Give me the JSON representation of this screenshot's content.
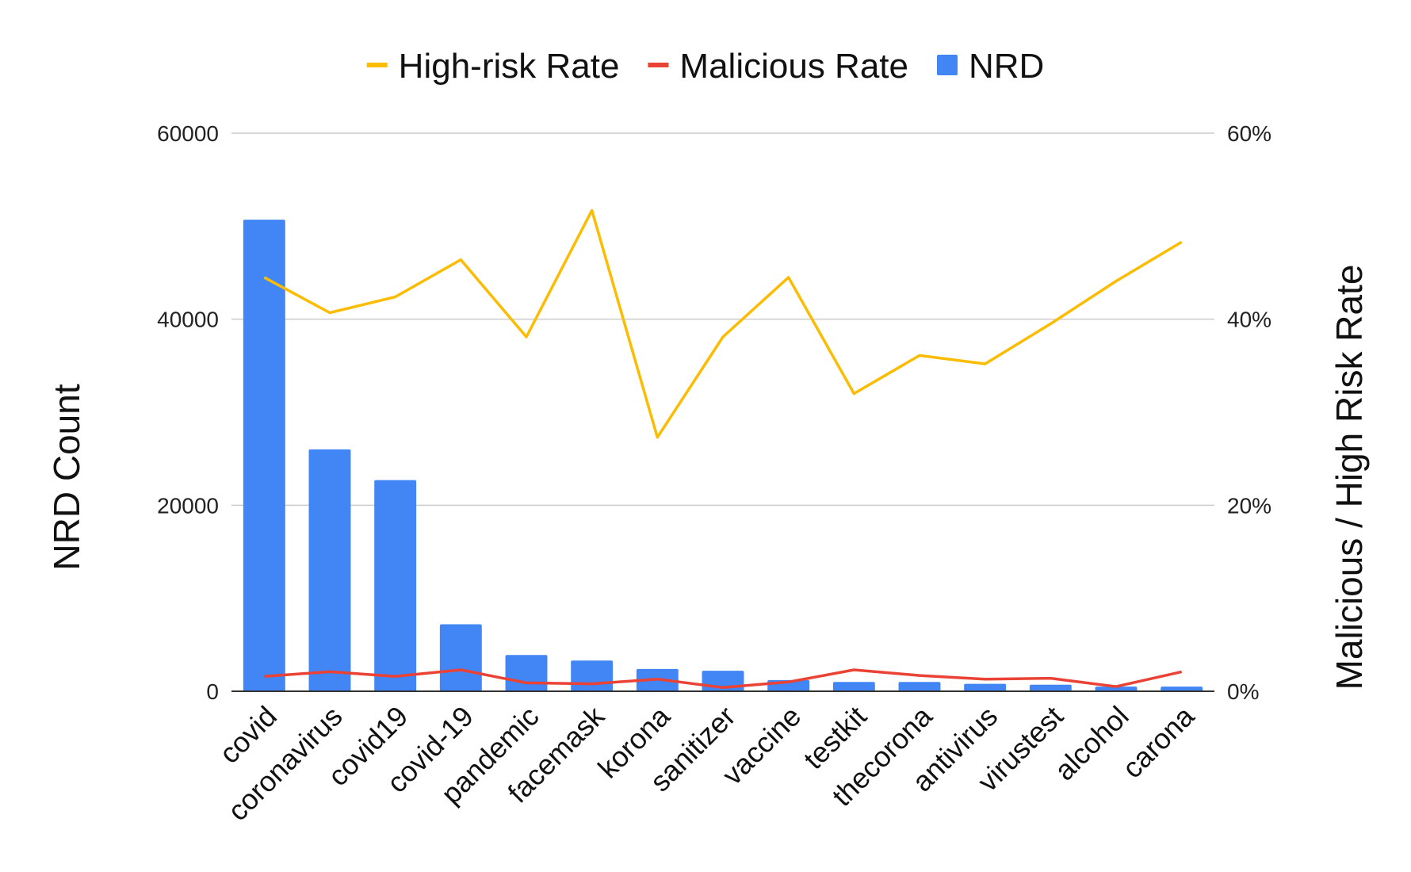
{
  "chart_data": {
    "type": "bar",
    "categories": [
      "covid",
      "coronavirus",
      "covid19",
      "covid-19",
      "pandemic",
      "facemask",
      "korona",
      "sanitizer",
      "vaccine",
      "testkit",
      "thecorona",
      "antivirus",
      "virustest",
      "alcohol",
      "carona"
    ],
    "series": [
      {
        "name": "NRD",
        "type": "bar",
        "axis": "left",
        "color": "#4285F4",
        "values": [
          50700,
          26000,
          22700,
          7200,
          3900,
          3300,
          2400,
          2200,
          1200,
          1000,
          1000,
          800,
          700,
          500,
          500
        ]
      },
      {
        "name": "High-risk Rate",
        "type": "line",
        "axis": "right",
        "color": "#FBBC04",
        "values": [
          0.445,
          0.407,
          0.424,
          0.464,
          0.381,
          0.517,
          0.273,
          0.381,
          0.445,
          0.32,
          0.361,
          0.352,
          0.395,
          0.441,
          0.483
        ]
      },
      {
        "name": "Malicious Rate",
        "type": "line",
        "axis": "right",
        "color": "#EA4335",
        "values": [
          0.016,
          0.021,
          0.016,
          0.023,
          0.009,
          0.008,
          0.013,
          0.004,
          0.01,
          0.023,
          0.017,
          0.013,
          0.014,
          0.005,
          0.021
        ]
      }
    ],
    "ylabel": "NRD Count",
    "y2label": "Malicious / High Risk Rate",
    "ylim": [
      0,
      60000
    ],
    "y2lim": [
      0,
      0.6
    ],
    "yticks": [
      "0",
      "20000",
      "40000",
      "60000"
    ],
    "y2ticks": [
      "0%",
      "20%",
      "40%",
      "60%"
    ],
    "legend_position": "top",
    "legend": [
      "High-risk Rate",
      "Malicious Rate",
      "NRD"
    ],
    "grid": true
  }
}
